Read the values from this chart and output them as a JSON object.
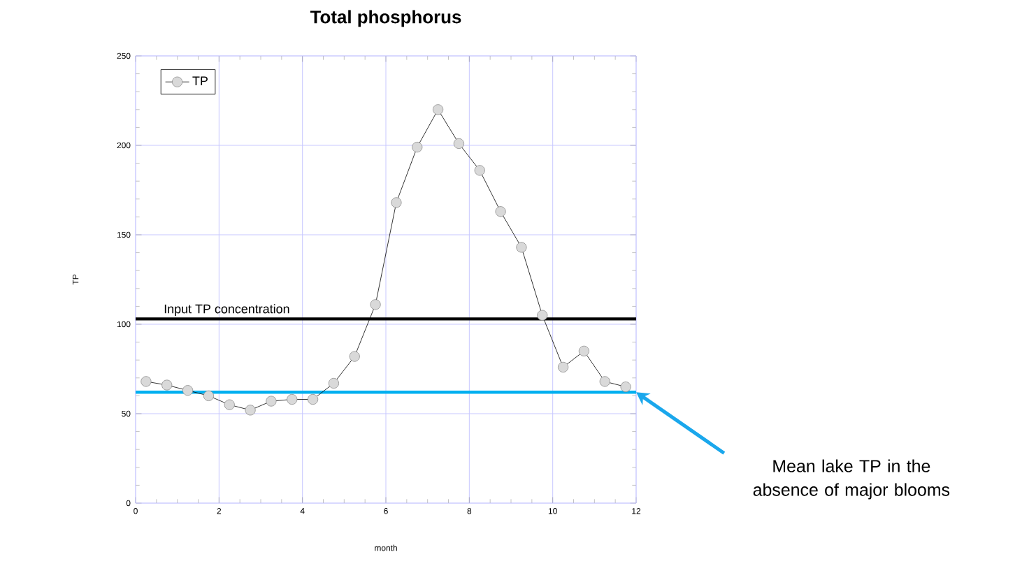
{
  "chart_data": {
    "type": "line",
    "title": "Total phosphorus",
    "xlabel": "month",
    "ylabel": "TP",
    "x": [
      0.25,
      0.75,
      1.25,
      1.75,
      2.25,
      2.75,
      3.25,
      3.75,
      4.25,
      4.75,
      5.25,
      5.75,
      6.25,
      6.75,
      7.25,
      7.75,
      8.25,
      8.75,
      9.25,
      9.75,
      10.25,
      10.75,
      11.25,
      11.75
    ],
    "series": [
      {
        "name": "TP",
        "color": "#000000",
        "values": [
          68,
          66,
          63,
          60,
          55,
          52,
          57,
          58,
          58,
          67,
          82,
          111,
          168,
          199,
          220,
          201,
          186,
          163,
          143,
          105,
          76,
          85,
          68,
          65
        ]
      }
    ],
    "xlim": [
      0,
      12
    ],
    "xticks": [
      0,
      2,
      4,
      6,
      8,
      10,
      12
    ],
    "ylim": [
      0,
      250
    ],
    "yticks": [
      0,
      50,
      100,
      150,
      200,
      250
    ],
    "grid": true,
    "legend": "top left",
    "marker": "circle",
    "line_style": "solid",
    "ref_lines": [
      {
        "axis": "y",
        "value": 103,
        "label": "Input TP concentration",
        "color": "#000000"
      },
      {
        "axis": "y",
        "value": 62,
        "color": "#00b0f0"
      }
    ],
    "annotations": [
      "Mean lake TP in the absence of major blooms"
    ]
  }
}
